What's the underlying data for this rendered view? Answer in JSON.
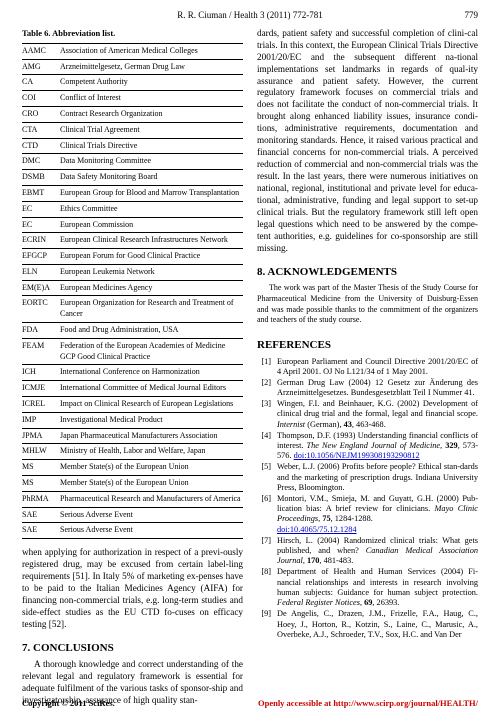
{
  "header": {
    "running": "R. R. Ciuman / Health 3 (2011) 772-781",
    "page": "779"
  },
  "table_caption": "Table 6. Abbreviation list.",
  "abbr": [
    [
      "AAMC",
      "Association of American Medical Colleges"
    ],
    [
      "AMG",
      "Arzneimittelgesetz, German Drug Law"
    ],
    [
      "CA",
      "Competent Authority"
    ],
    [
      "COI",
      "Conflict of Interest"
    ],
    [
      "CRO",
      "Contract Research Organization"
    ],
    [
      "CTA",
      "Clinical Trial Agreement"
    ],
    [
      "CTD",
      "Clinical Trials Directive"
    ],
    [
      "DMC",
      "Data Monitoring Committee"
    ],
    [
      "DSMB",
      "Data Safety Monitoring Board"
    ],
    [
      "EBMT",
      "European Group for Blood and Marrow Transplantation"
    ],
    [
      "EC",
      "Ethics Committee"
    ],
    [
      "EC",
      "European Commission"
    ],
    [
      "ECRIN",
      "European Clinical Research Infrastructures Network"
    ],
    [
      "EFGCP",
      "European Forum for Good Clinical Practice"
    ],
    [
      "ELN",
      "European Leukemia Network"
    ],
    [
      "EM(E)A",
      "European Medicines Agency"
    ],
    [
      "EORTC",
      "European Organization for Research and Treatment of Cancer"
    ],
    [
      "FDA",
      "Food and Drug Administration, USA"
    ],
    [
      "FEAM",
      "Federation of the European Academies of Medicine GCP Good Clinical Practice"
    ],
    [
      "ICH",
      "International Conference on Harmonization"
    ],
    [
      "ICMJE",
      "International Committee of Medical Journal Editors"
    ],
    [
      "ICREL",
      "Impact on Clinical Research of European Legislations"
    ],
    [
      "IMP",
      "Investigational Medical Product"
    ],
    [
      "JPMA",
      "Japan Pharmaceutical Manufacturers Association"
    ],
    [
      "MHLW",
      "Ministry of Health, Labor and Welfare, Japan"
    ],
    [
      "MS",
      "Member State(s) of the European Union"
    ],
    [
      "MS",
      "Member State(s) of the European Union"
    ],
    [
      "PhRMA",
      "Pharmaceutical Research and Manufacturers of America"
    ],
    [
      "SAE",
      "Serious Adverse Event"
    ],
    [
      "SAE",
      "Serious Adverse Event"
    ]
  ],
  "left_para": "when applying for authorization in respect of a previ-ously registered drug, may be excused from certain label-ling requirements [51]. In Italy 5% of marketing ex-penses have to be paid to the Italian Medicines Agency (AIFA) for financing non-commercial trials, e.g. long-term studies and side-effect studies as the EU CTD fo-cuses on efficacy testing [52].",
  "sec7_title": "7. CONCLUSIONS",
  "sec7_body": "A thorough knowledge and correct understanding of the relevant legal and regulatory framework is essential for adequate fulfilment of the various tasks of sponsor-ship and investigatorship, assurance of high quality stan-",
  "right_para": "dards, patient safety and successful completion of clini-cal trials. In this context, the European Clinical Trials Directive 2001/20/EC and the subsequent different na-tional implementations set landmarks in regards of qual-ity assurance and patient safety. However, the current regulatory framework focuses on commercial trials and does not facilitate the conduct of non-commercial trials. It brought along enhanced liability issues, insurance condi-tions, administrative requirements, documentation and monitoring standards. Hence, it raised various practical and financial concerns for non-commercial trials. A perceived reduction of commercial and non-commercial trials was the result. In the last years, there were numerous initiatives on national, regional, institutional and private level for educa-tional, administrative, funding and legal support to set-up clinical trials. But the regulatory framework still left open legal questions which need to be answered by the compe-tent authorities, e.g. guidelines for co-sponsorship are still missing.",
  "sec8_title": "8. ACKNOWLEDGEMENTS",
  "sec8_body": "The work was part of the Master Thesis of the Study Course for Pharmaceutical Medicine from the University of Duisburg-Essen and was made possible thanks to the commitment of the organizers and teachers of the study course.",
  "refs_title": "REFERENCES",
  "refs": [
    {
      "n": "[1]",
      "t": "European Parliament and Council Directive 2001/20/EC of 4 April 2001. OJ No L121/34 of 1 May 2001."
    },
    {
      "n": "[2]",
      "t": "German Drug Law (2004) 12 Gesetz zur Änderung des Arzneimittelgesetzes. Bundesgesetzblatt Teil I Nummer 41."
    },
    {
      "n": "[3]",
      "t": "Wingen, F.I. and Beinhauer, K.G. (2002) Development of clinical drug trial and the formal, legal and financial scope. <span class='it'>Internist</span> (German), <b>43</b>, 463-468."
    },
    {
      "n": "[4]",
      "t": "Thompson, D.F. (1993) Understanding financial conflicts of interest. <span class='it'>The New England Journal of Medicine</span>, <b>329</b>, 573-576. <a href='#'>doi:10.1056/NEJM199308193290812</a>"
    },
    {
      "n": "[5]",
      "t": "Weber, L.J. (2006) Profits before people? Ethical stan-dards and the marketing of prescription drugs. Indiana University Press, Bloomington."
    },
    {
      "n": "[6]",
      "t": "Montori, V.M., Smieja, M. and Guyatt, G.H. (2000) Pub-lication bias: A brief review for clinicians. <span class='it'>Mayo Clinic Proceedings</span>, <b>75</b>, 1284-1288.<br><a href='#'>doi:10.4065/75.12.1284</a>"
    },
    {
      "n": "[7]",
      "t": "Hirsch, L. (2004) Randomized clinical trials: What gets published, and when? <span class='it'>Canadian Medical Association Journal</span>, <b>170</b>, 481-483."
    },
    {
      "n": "[8]",
      "t": "Department of Health and Human Services (2004) Fi-nancial relationships and interests in research involving human subjects: Guidance for human subject protection. <span class='it'>Federal Register Notices</span>, <b>69</b>, 26393."
    },
    {
      "n": "[9]",
      "t": "De Angelis, C., Drazen, J.M., Frizelle, F.A., Haug, C., Hoey, J., Horton, R., Kotzin, S., Laine, C., Marusic, A., Overbeke, A.J., Schroeder, T.V., Sox, H.C. and Van Der"
    }
  ],
  "footer": {
    "left": "Copyright © 2011 SciRes.",
    "right_prefix": "Openly accessible at ",
    "right_link": "http://www.scirp.org/journal/HEALTH/"
  }
}
